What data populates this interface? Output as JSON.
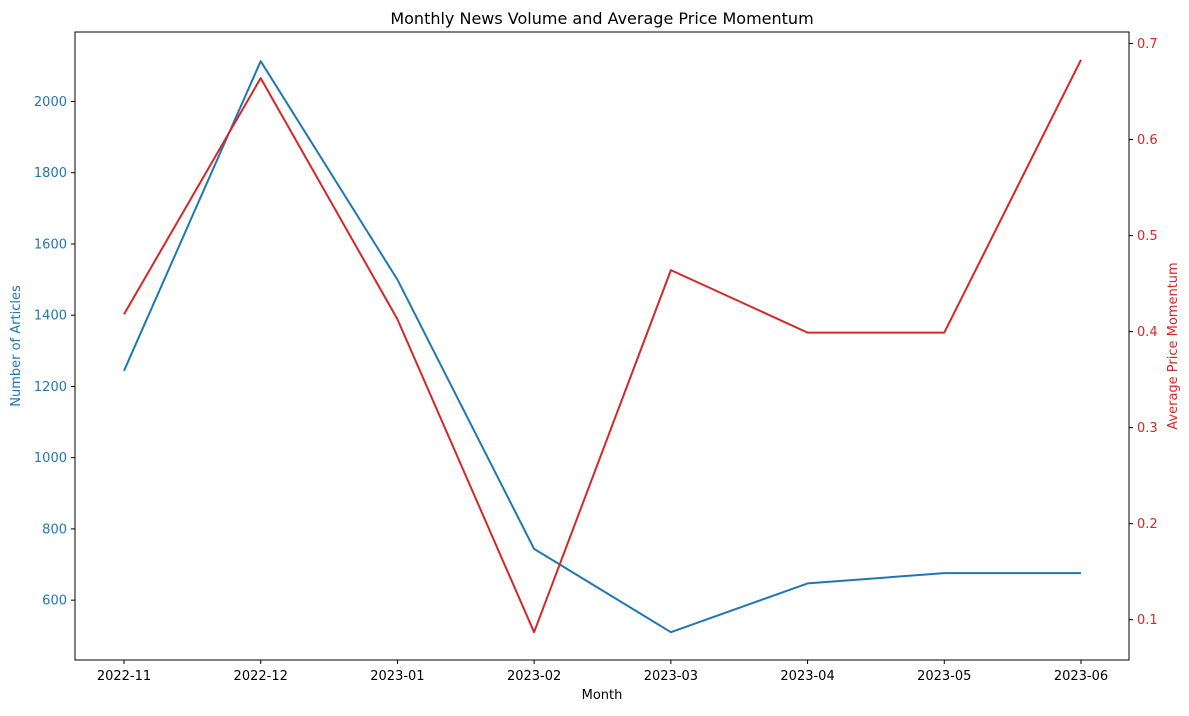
{
  "chart_data": {
    "type": "line",
    "title": "Monthly News Volume and Average Price Momentum",
    "xlabel": "Month",
    "categories": [
      "2022-11",
      "2022-12",
      "2023-01",
      "2023-02",
      "2023-03",
      "2023-04",
      "2023-05",
      "2023-06"
    ],
    "left_axis": {
      "label": "Number of Articles",
      "color": "#1f77b4",
      "ticks": [
        600,
        800,
        1000,
        1200,
        1400,
        1600,
        1800,
        2000
      ],
      "ylim": [
        432,
        2195
      ]
    },
    "right_axis": {
      "label": "Average Price Momentum",
      "color": "#d62728",
      "ticks": [
        0.1,
        0.2,
        0.3,
        0.4,
        0.5,
        0.6,
        0.7
      ],
      "ylim": [
        0.058,
        0.712
      ]
    },
    "series": [
      {
        "name": "Number of Articles",
        "axis": "left",
        "color": "#1f77b4",
        "values": [
          1244,
          2113,
          1500,
          744,
          510,
          647,
          676,
          676
        ]
      },
      {
        "name": "Average Price Momentum",
        "axis": "right",
        "color": "#d62728",
        "values": [
          0.418,
          0.664,
          0.413,
          0.087,
          0.464,
          0.399,
          0.399,
          0.683
        ]
      }
    ],
    "grid": false
  }
}
